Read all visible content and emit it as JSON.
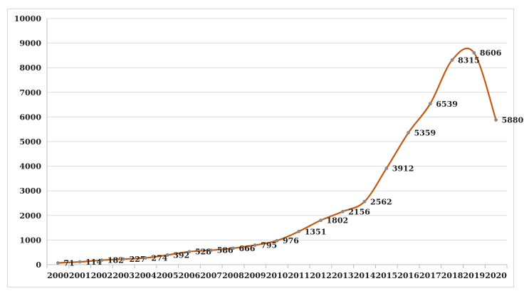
{
  "chart_data": {
    "type": "line",
    "title": "",
    "xlabel": "",
    "ylabel": "",
    "x": [
      "2000",
      "2001",
      "2002",
      "2003",
      "2004",
      "2005",
      "2006",
      "2007",
      "2008",
      "2009",
      "2010",
      "2011",
      "2012",
      "2013",
      "2014",
      "2015",
      "2016",
      "2017",
      "2018",
      "2019",
      "2020"
    ],
    "series": [
      {
        "name": "",
        "color": "#c55a11",
        "values": [
          71,
          114,
          182,
          227,
          274,
          392,
          528,
          586,
          666,
          795,
          976,
          1351,
          1802,
          2156,
          2562,
          3912,
          5359,
          6539,
          8315,
          8606,
          5880
        ],
        "labels": [
          "71",
          "114",
          "182",
          "227",
          "274",
          "392",
          "528",
          "586",
          "666",
          "795",
          "976",
          "1351",
          "1802",
          "2156",
          "2562",
          "3912",
          "5359",
          "6539",
          "8315",
          "8606",
          "5880"
        ]
      }
    ],
    "yticks": [
      "0",
      "1000",
      "2000",
      "3000",
      "4000",
      "5000",
      "6000",
      "7000",
      "8000",
      "9000",
      "10000"
    ],
    "ylim": [
      0,
      10000
    ],
    "grid": true,
    "legend": "none"
  }
}
